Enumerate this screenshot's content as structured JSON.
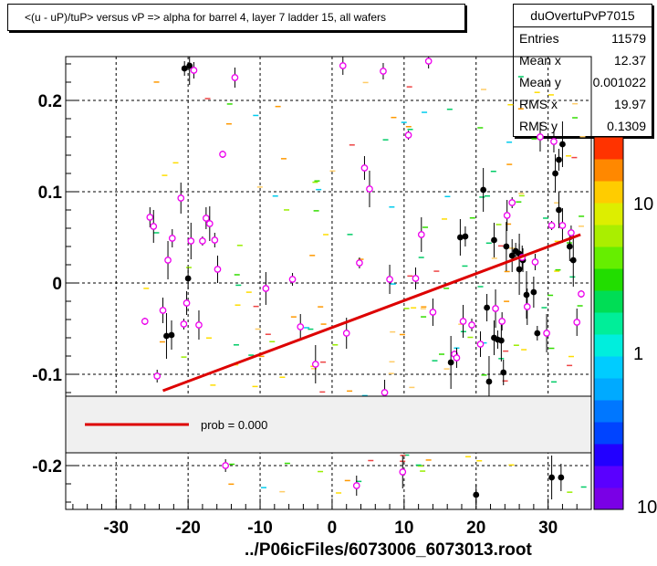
{
  "title": "<(u - uP)/tuP> versus   vP => alpha for barrel 4, layer 7 ladder 15, all wafers",
  "stats": {
    "name": "duOvertuPvP7015",
    "rows": [
      {
        "label": "Entries",
        "value": "11579"
      },
      {
        "label": "Mean x",
        "value": "12.37"
      },
      {
        "label": "Mean y",
        "value": "0.001022"
      },
      {
        "label": "RMS x",
        "value": "19.97"
      },
      {
        "label": "RMS y",
        "value": "0.1309"
      }
    ]
  },
  "footer": "../P06icFiles/6073006_6073013.root",
  "legend": {
    "label": "prob = 0.000",
    "line_color": "#dd0000"
  },
  "colorbar": {
    "tick_labels": [
      "10",
      "1",
      "10"
    ]
  },
  "chart_data": {
    "type": "scatter",
    "xlim": [
      -37,
      36
    ],
    "ylim": [
      -0.248,
      0.248
    ],
    "x_ticks": [
      -30,
      -20,
      -10,
      0,
      10,
      20,
      30
    ],
    "x_tick_labels": [
      "-30",
      "-20",
      "-10",
      "0",
      "10",
      "20",
      "30"
    ],
    "y_ticks": [
      -0.2,
      -0.1,
      0,
      0.1,
      0.2
    ],
    "y_tick_labels": [
      "-0.2",
      "-0.1",
      "0",
      "0.1",
      "0.2"
    ],
    "grid": true,
    "fit_line": {
      "x": [
        -23.5,
        34.5
      ],
      "y": [
        -0.118,
        0.053
      ],
      "color": "#dd0000"
    },
    "black_points": [
      [
        -20.5,
        0.235
      ],
      [
        -19.8,
        0.238
      ],
      [
        -20.0,
        0.005
      ],
      [
        -23.0,
        -0.058
      ],
      [
        -22.3,
        -0.057
      ],
      [
        16.5,
        -0.087
      ],
      [
        17.8,
        0.05
      ],
      [
        18.5,
        0.051
      ],
      [
        21.0,
        0.102
      ],
      [
        21.5,
        -0.027
      ],
      [
        21.8,
        -0.108
      ],
      [
        22.5,
        -0.06
      ],
      [
        23.0,
        -0.062
      ],
      [
        23.5,
        -0.063
      ],
      [
        23.8,
        -0.098
      ],
      [
        24.2,
        0.04
      ],
      [
        25.0,
        0.03
      ],
      [
        25.5,
        0.035
      ],
      [
        26.0,
        0.032
      ],
      [
        26.5,
        0.025
      ],
      [
        27.0,
        -0.013
      ],
      [
        28.0,
        -0.01
      ],
      [
        28.5,
        -0.055
      ],
      [
        31.0,
        0.12
      ],
      [
        31.5,
        0.135
      ],
      [
        32.0,
        0.152
      ],
      [
        33.0,
        0.04
      ],
      [
        33.5,
        0.025
      ],
      [
        31.5,
        0.08
      ],
      [
        20.0,
        -0.232
      ],
      [
        30.5,
        -0.213
      ],
      [
        31.8,
        -0.213
      ],
      [
        26.0,
        0.015
      ],
      [
        22.5,
        0.047
      ]
    ],
    "pink_points": [
      [
        -26.0,
        -0.042
      ],
      [
        -25.3,
        0.072
      ],
      [
        -24.8,
        0.062
      ],
      [
        -24.3,
        -0.102
      ],
      [
        -23.5,
        -0.03
      ],
      [
        -22.8,
        0.025
      ],
      [
        -22.2,
        0.049
      ],
      [
        -21.0,
        0.093
      ],
      [
        -20.6,
        -0.045
      ],
      [
        -20.2,
        -0.022
      ],
      [
        -19.6,
        0.046
      ],
      [
        -19.2,
        0.233
      ],
      [
        -18.5,
        -0.046
      ],
      [
        -18.0,
        0.046
      ],
      [
        -17.5,
        0.071
      ],
      [
        -17.0,
        0.065
      ],
      [
        -16.3,
        0.047
      ],
      [
        -15.9,
        0.015
      ],
      [
        -15.2,
        0.141
      ],
      [
        -13.5,
        0.225
      ],
      [
        -9.2,
        -0.006
      ],
      [
        -5.5,
        0.004
      ],
      [
        -4.4,
        -0.048
      ],
      [
        -2.3,
        -0.089
      ],
      [
        1.5,
        0.238
      ],
      [
        2.0,
        -0.055
      ],
      [
        3.8,
        0.022
      ],
      [
        4.5,
        0.126
      ],
      [
        5.2,
        0.103
      ],
      [
        7.1,
        0.232
      ],
      [
        8.0,
        0.004
      ],
      [
        10.6,
        0.162
      ],
      [
        11.6,
        0.005
      ],
      [
        12.4,
        0.053
      ],
      [
        13.4,
        0.243
      ],
      [
        14.0,
        -0.032
      ],
      [
        17.0,
        -0.078
      ],
      [
        17.3,
        -0.082
      ],
      [
        18.2,
        -0.042
      ],
      [
        19.4,
        -0.046
      ],
      [
        20.6,
        -0.067
      ],
      [
        22.7,
        -0.028
      ],
      [
        23.6,
        -0.042
      ],
      [
        24.3,
        0.074
      ],
      [
        25.0,
        0.088
      ],
      [
        26.4,
        0.028
      ],
      [
        27.1,
        -0.026
      ],
      [
        28.2,
        0.023
      ],
      [
        28.9,
        0.16
      ],
      [
        30.5,
        0.063
      ],
      [
        30.8,
        0.155
      ],
      [
        32.0,
        0.063
      ],
      [
        33.2,
        0.055
      ],
      [
        34.0,
        -0.043
      ],
      [
        34.6,
        -0.012
      ],
      [
        3.4,
        -0.222
      ],
      [
        9.8,
        -0.207
      ],
      [
        -14.8,
        -0.2
      ],
      [
        7.3,
        -0.12
      ],
      [
        29.8,
        -0.055
      ]
    ]
  }
}
